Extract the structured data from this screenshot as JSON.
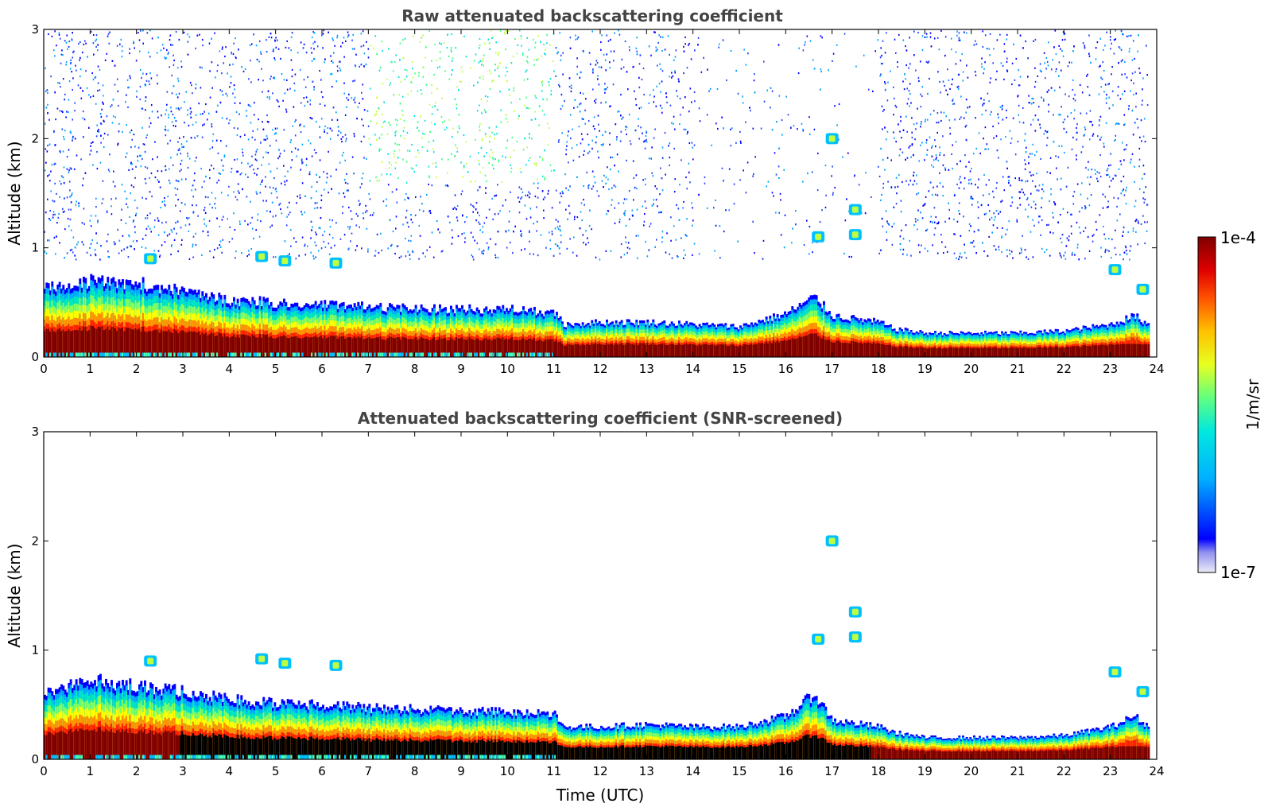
{
  "chart_data": [
    {
      "type": "heatmap",
      "title": "Raw attenuated backscattering coefficient",
      "xlabel": "",
      "ylabel": "Altitude (km)",
      "xlim": [
        0,
        24
      ],
      "ylim": [
        0,
        3
      ],
      "xticks": [
        "0",
        "1",
        "2",
        "3",
        "4",
        "5",
        "6",
        "7",
        "8",
        "9",
        "10",
        "11",
        "12",
        "13",
        "14",
        "15",
        "16",
        "17",
        "18",
        "19",
        "20",
        "21",
        "22",
        "23",
        "24"
      ],
      "yticks": [
        "0",
        "1",
        "2",
        "3"
      ],
      "layer_top_km": [
        [
          0,
          0.62
        ],
        [
          1,
          0.7
        ],
        [
          2,
          0.68
        ],
        [
          3,
          0.6
        ],
        [
          4,
          0.52
        ],
        [
          5,
          0.5
        ],
        [
          6,
          0.48
        ],
        [
          7,
          0.46
        ],
        [
          8,
          0.45
        ],
        [
          9,
          0.44
        ],
        [
          10,
          0.44
        ],
        [
          11,
          0.4
        ],
        [
          11.2,
          0.3
        ],
        [
          12,
          0.32
        ],
        [
          13,
          0.32
        ],
        [
          14,
          0.3
        ],
        [
          15,
          0.28
        ],
        [
          16,
          0.4
        ],
        [
          16.6,
          0.55
        ],
        [
          17,
          0.38
        ],
        [
          18,
          0.32
        ],
        [
          18.3,
          0.26
        ],
        [
          19,
          0.22
        ],
        [
          20,
          0.22
        ],
        [
          21,
          0.22
        ],
        [
          22,
          0.24
        ],
        [
          23,
          0.3
        ],
        [
          23.5,
          0.38
        ],
        [
          23.8,
          0.3
        ]
      ],
      "noise": true
    },
    {
      "type": "heatmap",
      "title": "Attenuated backscattering coefficient (SNR-screened)",
      "xlabel": "Time (UTC)",
      "ylabel": "Altitude (km)",
      "xlim": [
        0,
        24
      ],
      "ylim": [
        0,
        3
      ],
      "xticks": [
        "0",
        "1",
        "2",
        "3",
        "4",
        "5",
        "6",
        "7",
        "8",
        "9",
        "10",
        "11",
        "12",
        "13",
        "14",
        "15",
        "16",
        "17",
        "18",
        "19",
        "20",
        "21",
        "22",
        "23",
        "24"
      ],
      "yticks": [
        "0",
        "1",
        "2",
        "3"
      ],
      "layer_top_km": [
        [
          0,
          0.62
        ],
        [
          1,
          0.72
        ],
        [
          2,
          0.68
        ],
        [
          3,
          0.62
        ],
        [
          4,
          0.55
        ],
        [
          5,
          0.52
        ],
        [
          6,
          0.5
        ],
        [
          7,
          0.47
        ],
        [
          8,
          0.46
        ],
        [
          9,
          0.44
        ],
        [
          10,
          0.44
        ],
        [
          11,
          0.42
        ],
        [
          11.2,
          0.3
        ],
        [
          12,
          0.3
        ],
        [
          13,
          0.32
        ],
        [
          14,
          0.3
        ],
        [
          15,
          0.3
        ],
        [
          16,
          0.4
        ],
        [
          16.6,
          0.6
        ],
        [
          17,
          0.36
        ],
        [
          18,
          0.3
        ],
        [
          18.3,
          0.25
        ],
        [
          19,
          0.2
        ],
        [
          20,
          0.2
        ],
        [
          21,
          0.2
        ],
        [
          22,
          0.22
        ],
        [
          23,
          0.3
        ],
        [
          23.5,
          0.4
        ],
        [
          23.8,
          0.3
        ]
      ],
      "noise": false
    }
  ],
  "colorbar": {
    "label": "1/m/sr",
    "max_label": "1e-4",
    "min_label": "1e-7",
    "scale": "log",
    "range": [
      1e-07,
      0.0001
    ]
  },
  "colors": {
    "low": "#e8e8f8",
    "blue": "#0000ff",
    "cyan": "#00e0ff",
    "green": "#40ff80",
    "yellow": "#ffff00",
    "orange": "#ff8000",
    "red": "#ff0000",
    "darkred": "#7f0000",
    "black": "#000000"
  }
}
